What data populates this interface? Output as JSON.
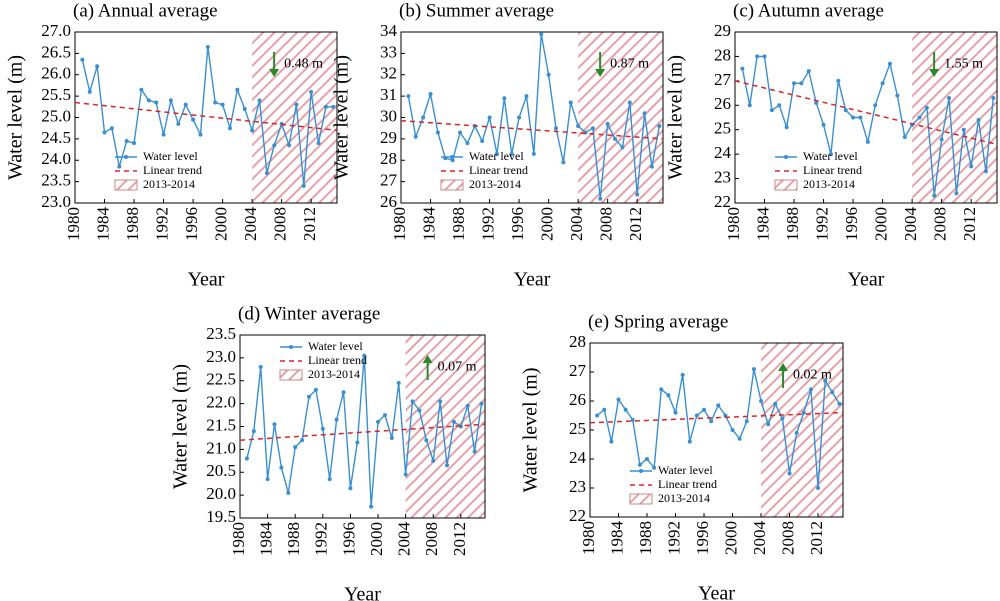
{
  "chart_data": [
    {
      "type": "line",
      "title": "(a) Annual average",
      "xlabel": "Year",
      "ylabel": "Water level (m)",
      "x": [
        1981,
        1982,
        1983,
        1984,
        1985,
        1986,
        1987,
        1988,
        1989,
        1990,
        1991,
        1992,
        1993,
        1994,
        1995,
        1996,
        1997,
        1998,
        1999,
        2000,
        2001,
        2002,
        2003,
        2004,
        2005,
        2006,
        2007,
        2008,
        2009,
        2010,
        2011,
        2012,
        2013,
        2014,
        2015
      ],
      "series": [
        {
          "name": "Water level",
          "color": "#3a8fd0",
          "values": [
            26.35,
            25.6,
            26.2,
            24.65,
            24.75,
            23.85,
            24.45,
            24.4,
            25.65,
            25.4,
            25.35,
            24.6,
            25.4,
            24.85,
            25.3,
            24.95,
            24.6,
            26.65,
            25.35,
            25.3,
            24.75,
            25.65,
            25.2,
            24.7,
            25.4,
            23.7,
            24.35,
            24.85,
            24.35,
            25.3,
            23.4,
            25.6,
            24.4,
            25.25,
            25.25
          ]
        },
        {
          "name": "Linear trend",
          "color": "#d62728",
          "dashed": true,
          "x": [
            1980,
            2015.5
          ],
          "values": [
            25.35,
            24.7
          ]
        }
      ],
      "shade": {
        "name": "2013-2014",
        "range": [
          2004,
          2015.5
        ],
        "color": "#e8a0a8"
      },
      "annotation": {
        "text": "0.48 m",
        "direction": "down",
        "color": "#2a8a2a"
      },
      "legend": "lower left",
      "xlim": [
        1980,
        2015.5
      ],
      "xticks": [
        1980,
        1984,
        1988,
        1992,
        1996,
        2000,
        2004,
        2008,
        2012
      ],
      "ylim": [
        23,
        27
      ],
      "yticks": [
        {
          "value": 23,
          "label": "23.0"
        },
        {
          "value": 23.5,
          "label": "23.5"
        },
        {
          "value": 24,
          "label": "24.0"
        },
        {
          "value": 24.5,
          "label": "24.5"
        },
        {
          "value": 25,
          "label": "25.0"
        },
        {
          "value": 25.5,
          "label": "25.5"
        },
        {
          "value": 26,
          "label": "26.0"
        },
        {
          "value": 26.5,
          "label": "26.5"
        },
        {
          "value": 27,
          "label": "27.0"
        }
      ]
    },
    {
      "type": "line",
      "title": "(b) Summer average",
      "xlabel": "Year",
      "ylabel": "Water level (m)",
      "x": [
        1981,
        1982,
        1983,
        1984,
        1985,
        1986,
        1987,
        1988,
        1989,
        1990,
        1991,
        1992,
        1993,
        1994,
        1995,
        1996,
        1997,
        1998,
        1999,
        2000,
        2001,
        2002,
        2003,
        2004,
        2005,
        2006,
        2007,
        2008,
        2009,
        2010,
        2011,
        2012,
        2013,
        2014,
        2015
      ],
      "series": [
        {
          "name": "Water level",
          "color": "#3a8fd0",
          "values": [
            31.0,
            29.1,
            30.0,
            31.1,
            29.3,
            28.1,
            28.0,
            29.3,
            28.8,
            29.6,
            28.9,
            30.0,
            28.3,
            30.9,
            28.3,
            30.0,
            31.0,
            28.3,
            33.9,
            32.0,
            29.5,
            27.9,
            30.7,
            29.6,
            29.3,
            29.5,
            26.2,
            29.7,
            29.0,
            28.6,
            30.7,
            26.4,
            30.2,
            27.7,
            29.6
          ]
        },
        {
          "name": "Linear trend",
          "color": "#d62728",
          "dashed": true,
          "x": [
            1980,
            2015.5
          ],
          "values": [
            29.85,
            29.0
          ]
        }
      ],
      "shade": {
        "name": "2013-2014",
        "range": [
          2004,
          2015.5
        ],
        "color": "#e8a0a8"
      },
      "annotation": {
        "text": "0.87 m",
        "direction": "down",
        "color": "#2a8a2a"
      },
      "legend": "lower left",
      "xlim": [
        1980,
        2015.5
      ],
      "xticks": [
        1980,
        1984,
        1988,
        1992,
        1996,
        2000,
        2004,
        2008,
        2012
      ],
      "ylim": [
        26,
        34
      ],
      "yticks": [
        26,
        27,
        28,
        29,
        30,
        31,
        32,
        33,
        34
      ]
    },
    {
      "type": "line",
      "title": "(c) Autumn average",
      "xlabel": "Year",
      "ylabel": "Water level (m)",
      "x": [
        1981,
        1982,
        1983,
        1984,
        1985,
        1986,
        1987,
        1988,
        1989,
        1990,
        1991,
        1992,
        1993,
        1994,
        1995,
        1996,
        1997,
        1998,
        1999,
        2000,
        2001,
        2002,
        2003,
        2004,
        2005,
        2006,
        2007,
        2008,
        2009,
        2010,
        2011,
        2012,
        2013,
        2014,
        2015
      ],
      "series": [
        {
          "name": "Water level",
          "color": "#3a8fd0",
          "values": [
            27.5,
            26.0,
            28.0,
            28.0,
            25.8,
            26.0,
            25.1,
            26.9,
            26.9,
            27.4,
            26.1,
            25.2,
            24.0,
            27.0,
            25.8,
            25.5,
            25.5,
            24.5,
            26.0,
            26.9,
            27.7,
            26.4,
            24.7,
            25.2,
            25.5,
            25.9,
            22.3,
            24.6,
            26.3,
            22.4,
            25.0,
            23.5,
            25.4,
            23.3,
            26.3
          ]
        },
        {
          "name": "Linear trend",
          "color": "#d62728",
          "dashed": true,
          "x": [
            1980,
            2015.5
          ],
          "values": [
            27.0,
            24.4
          ]
        }
      ],
      "shade": {
        "name": "2013-2014",
        "range": [
          2004,
          2015.5
        ],
        "color": "#e8a0a8"
      },
      "annotation": {
        "text": "1.55 m",
        "direction": "down",
        "color": "#2a8a2a"
      },
      "legend": "lower left",
      "xlim": [
        1980,
        2015.5
      ],
      "xticks": [
        1980,
        1984,
        1988,
        1992,
        1996,
        2000,
        2004,
        2008,
        2012
      ],
      "ylim": [
        22,
        29
      ],
      "yticks": [
        22,
        23,
        24,
        25,
        26,
        27,
        28,
        29
      ]
    },
    {
      "type": "line",
      "title": "(d) Winter average",
      "xlabel": "Year",
      "ylabel": "Water level (m)",
      "x": [
        1981,
        1982,
        1983,
        1984,
        1985,
        1986,
        1987,
        1988,
        1989,
        1990,
        1991,
        1992,
        1993,
        1994,
        1995,
        1996,
        1997,
        1998,
        1999,
        2000,
        2001,
        2002,
        2003,
        2004,
        2005,
        2006,
        2007,
        2008,
        2009,
        2010,
        2011,
        2012,
        2013,
        2014,
        2015
      ],
      "series": [
        {
          "name": "Water level",
          "color": "#3a8fd0",
          "values": [
            20.8,
            21.4,
            22.8,
            20.35,
            21.55,
            20.6,
            20.05,
            21.05,
            21.2,
            22.15,
            22.3,
            21.45,
            20.35,
            21.65,
            22.25,
            20.15,
            21.15,
            23.05,
            19.75,
            21.6,
            21.75,
            21.25,
            22.45,
            20.45,
            22.05,
            21.85,
            21.2,
            20.75,
            22.05,
            20.65,
            21.6,
            21.5,
            21.95,
            20.95,
            22.0
          ]
        },
        {
          "name": "Linear trend",
          "color": "#d62728",
          "dashed": true,
          "x": [
            1980,
            2015.5
          ],
          "values": [
            21.2,
            21.55
          ]
        }
      ],
      "shade": {
        "name": "2013-2014",
        "range": [
          2004,
          2015.5
        ],
        "color": "#e8a0a8"
      },
      "annotation": {
        "text": "0.07 m",
        "direction": "up",
        "color": "#2a8a2a"
      },
      "legend": "upper left",
      "xlim": [
        1980,
        2015.5
      ],
      "xticks": [
        1980,
        1984,
        1988,
        1992,
        1996,
        2000,
        2004,
        2008,
        2012
      ],
      "ylim": [
        19.5,
        23.5
      ],
      "yticks": [
        19.5,
        {
          "value": 20,
          "label": "20.0"
        },
        20.5,
        {
          "value": 21,
          "label": "21.0"
        },
        21.5,
        {
          "value": 22,
          "label": "22.0"
        },
        22.5,
        {
          "value": 23,
          "label": "23.0"
        },
        23.5
      ]
    },
    {
      "type": "line",
      "title": "(e) Spring average",
      "xlabel": "Year",
      "ylabel": "Water level (m)",
      "x": [
        1981,
        1982,
        1983,
        1984,
        1985,
        1986,
        1987,
        1988,
        1989,
        1990,
        1991,
        1992,
        1993,
        1994,
        1995,
        1996,
        1997,
        1998,
        1999,
        2000,
        2001,
        2002,
        2003,
        2004,
        2005,
        2006,
        2007,
        2008,
        2009,
        2010,
        2011,
        2012,
        2013,
        2014,
        2015
      ],
      "series": [
        {
          "name": "Water level",
          "color": "#3a8fd0",
          "values": [
            25.5,
            25.7,
            24.6,
            26.05,
            25.7,
            25.35,
            23.8,
            24.0,
            23.7,
            26.4,
            26.2,
            25.6,
            26.9,
            24.6,
            25.5,
            25.7,
            25.3,
            25.85,
            25.5,
            25.0,
            24.7,
            25.3,
            27.1,
            26.0,
            25.2,
            25.9,
            25.4,
            23.5,
            24.9,
            25.6,
            26.4,
            23.0,
            26.7,
            26.3,
            25.9
          ]
        },
        {
          "name": "Linear trend",
          "color": "#d62728",
          "dashed": true,
          "x": [
            1980,
            2015.5
          ],
          "values": [
            25.25,
            25.6
          ]
        }
      ],
      "shade": {
        "name": "2013-2014",
        "range": [
          2004,
          2015.5
        ],
        "color": "#e8a0a8"
      },
      "annotation": {
        "text": "0.02 m",
        "direction": "up",
        "color": "#2a8a2a"
      },
      "legend": "lower left",
      "xlim": [
        1980,
        2015.5
      ],
      "xticks": [
        1980,
        1984,
        1988,
        1992,
        1996,
        2000,
        2004,
        2008,
        2012
      ],
      "ylim": [
        22,
        28
      ],
      "yticks": [
        22,
        23,
        24,
        25,
        26,
        27,
        28
      ]
    }
  ]
}
